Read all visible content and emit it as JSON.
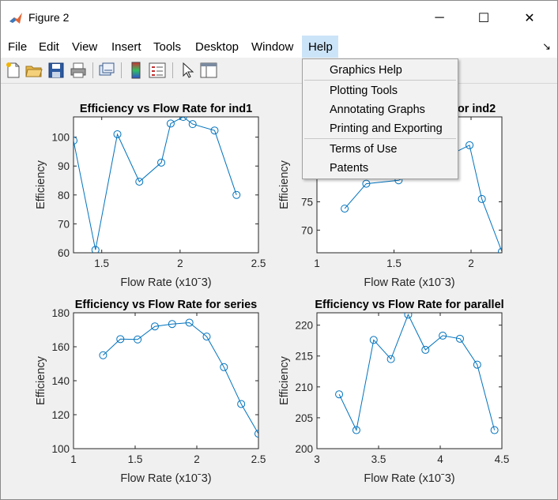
{
  "window": {
    "title": "Figure 2",
    "controls": {
      "minimize": "─",
      "maximize": "☐",
      "close": "✕"
    }
  },
  "menubar": {
    "items": [
      "File",
      "Edit",
      "View",
      "Insert",
      "Tools",
      "Desktop",
      "Window",
      "Help"
    ],
    "active": "Help",
    "dock_glyph": "↘"
  },
  "toolbar": {
    "buttons": [
      "new-figure-icon",
      "open-file-icon",
      "save-icon",
      "print-icon",
      "link-plot-icon",
      "colorbar-icon",
      "legend-icon",
      "pointer-icon",
      "property-editor-icon"
    ]
  },
  "help_menu": {
    "items": [
      "Graphics Help",
      "Plotting Tools",
      "Annotating Graphs",
      "Printing and Exporting",
      "Terms of Use",
      "Patents"
    ]
  },
  "colors": {
    "line": "#0072bd",
    "axes": "#262626",
    "grid_bg": "#ffffff",
    "menu_highlight": "#cce4f7"
  },
  "chart_data": [
    {
      "type": "line",
      "title": "Efficiency vs Flow Rate for ind1",
      "xlabel": "Flow Rate (x10ˉ3)",
      "ylabel": "Efficiency",
      "xlim": [
        1.32,
        2.5
      ],
      "ylim": [
        60,
        107
      ],
      "xticks": [
        1.5,
        2,
        2.5
      ],
      "xtick_labels": [
        "1.5",
        "2",
        "2.5"
      ],
      "yticks": [
        60,
        70,
        80,
        90,
        100
      ],
      "yticks_labels": [
        "60",
        "70",
        "80",
        "90",
        "100"
      ],
      "x": [
        1.32,
        1.46,
        1.6,
        1.74,
        1.88,
        1.94,
        2.02,
        2.08,
        2.22,
        2.36
      ],
      "y": [
        98.8,
        61.0,
        101.0,
        84.6,
        91.2,
        104.7,
        107.0,
        104.5,
        102.3,
        80.0
      ]
    },
    {
      "type": "line",
      "title": "Efficiency vs Flow Rate for ind2",
      "xlabel": "Flow Rate (x10ˉ3)",
      "ylabel": "Efficiency",
      "xlim": [
        1,
        2.2
      ],
      "ylim": [
        66,
        90
      ],
      "xticks": [
        1,
        1.5,
        2
      ],
      "xtick_labels": [
        "1",
        "1.5",
        "2"
      ],
      "yticks": [
        70,
        75
      ],
      "yticks_labels": [
        "70",
        "75"
      ],
      "x": [
        1.18,
        1.32,
        1.53,
        1.99,
        2.07,
        2.2
      ],
      "y": [
        73.8,
        78.2,
        78.8,
        85.0,
        75.5,
        66.2
      ]
    },
    {
      "type": "line",
      "title": "Efficiency vs Flow Rate for series",
      "xlabel": "Flow Rate (x10ˉ3)",
      "ylabel": "Efficiency",
      "xlim": [
        1,
        2.5
      ],
      "ylim": [
        100,
        180
      ],
      "xticks": [
        1,
        1.5,
        2,
        2.5
      ],
      "xtick_labels": [
        "1",
        "1.5",
        "2",
        "2.5"
      ],
      "yticks": [
        100,
        120,
        140,
        160,
        180
      ],
      "yticks_labels": [
        "100",
        "120",
        "140",
        "160",
        "180"
      ],
      "x": [
        1.24,
        1.38,
        1.52,
        1.66,
        1.8,
        1.94,
        2.08,
        2.22,
        2.36,
        2.5
      ],
      "y": [
        155.0,
        164.5,
        164.3,
        172.0,
        173.4,
        174.2,
        166.0,
        148.0,
        126.3,
        108.8
      ]
    },
    {
      "type": "line",
      "title": "Efficiency vs Flow Rate for parallel",
      "xlabel": "Flow Rate (x10ˉ3)",
      "ylabel": "Efficiency",
      "xlim": [
        3,
        4.5
      ],
      "ylim": [
        200,
        222
      ],
      "xticks": [
        3,
        3.5,
        4,
        4.5
      ],
      "xtick_labels": [
        "3",
        "3.5",
        "4",
        "4.5"
      ],
      "yticks": [
        200,
        205,
        210,
        215,
        220
      ],
      "yticks_labels": [
        "200",
        "205",
        "210",
        "215",
        "220"
      ],
      "x": [
        3.18,
        3.32,
        3.46,
        3.6,
        3.74,
        3.88,
        4.02,
        4.16,
        4.3,
        4.44
      ],
      "y": [
        208.8,
        203.0,
        217.6,
        214.5,
        221.7,
        216.0,
        218.3,
        217.8,
        213.6,
        203.0
      ]
    }
  ]
}
